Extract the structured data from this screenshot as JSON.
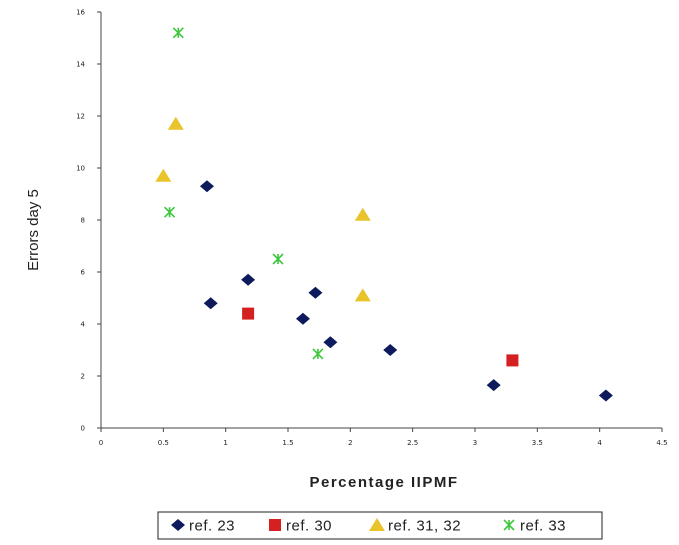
{
  "chart_data": {
    "type": "scatter",
    "title": "",
    "xlabel": "Percentage IIPMF",
    "ylabel": "Errors day 5",
    "xlim": [
      0,
      4.5
    ],
    "ylim": [
      0,
      16
    ],
    "x_ticks": [
      "0",
      "0.5",
      "1",
      "1.5",
      "2",
      "2.5",
      "3",
      "3.5",
      "4",
      "4.5"
    ],
    "y_ticks": [
      "0",
      "2",
      "4",
      "6",
      "8",
      "10",
      "12",
      "14",
      "16"
    ],
    "legend_position": "bottom",
    "series": [
      {
        "name": "ref. 23",
        "marker": "diamond",
        "color": "#0d1a5c",
        "points": [
          [
            0.85,
            9.3
          ],
          [
            0.88,
            4.8
          ],
          [
            1.18,
            5.7
          ],
          [
            1.72,
            5.2
          ],
          [
            1.62,
            4.2
          ],
          [
            1.84,
            3.3
          ],
          [
            2.32,
            3.0
          ],
          [
            3.15,
            1.65
          ],
          [
            4.05,
            1.25
          ]
        ]
      },
      {
        "name": "ref. 30",
        "marker": "square",
        "color": "#d42020",
        "points": [
          [
            1.18,
            4.4
          ],
          [
            3.3,
            2.6
          ]
        ]
      },
      {
        "name": "ref. 31, 32",
        "marker": "triangle",
        "color": "#e8c42a",
        "points": [
          [
            0.6,
            11.7
          ],
          [
            0.5,
            9.7
          ],
          [
            2.1,
            8.2
          ],
          [
            2.1,
            5.1
          ]
        ]
      },
      {
        "name": "ref. 33",
        "marker": "cross",
        "color": "#3cc83c",
        "points": [
          [
            0.62,
            15.2
          ],
          [
            0.55,
            8.3
          ],
          [
            1.42,
            6.5
          ],
          [
            1.74,
            2.85
          ]
        ]
      }
    ]
  }
}
